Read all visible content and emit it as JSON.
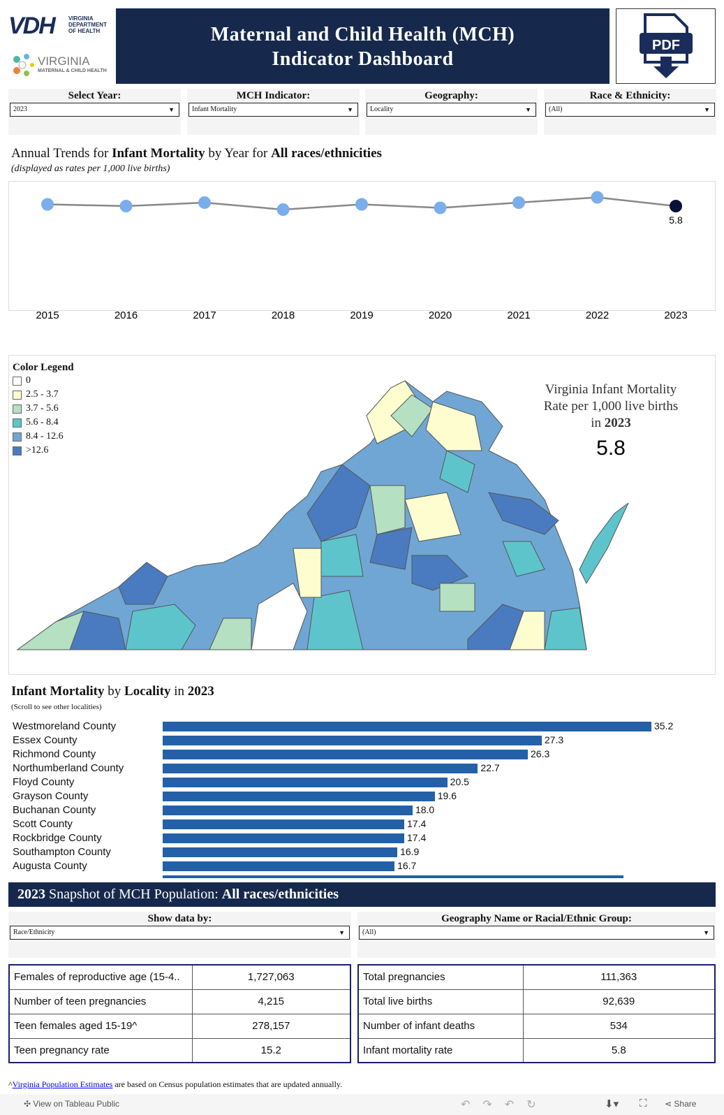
{
  "header": {
    "logo_vdh": "VDH",
    "logo_vdh_sub": "VIRGINIA DEPARTMENT OF HEALTH",
    "logo_mch": "VIRGINIA",
    "logo_mch_sub": "MATERNAL & CHILD HEALTH",
    "title_line1": "Maternal and Child Health (MCH)",
    "title_line2": "Indicator Dashboard",
    "pdf_label": "PDF"
  },
  "filters": [
    {
      "label": "Select Year:",
      "value": "2023"
    },
    {
      "label": "MCH Indicator:",
      "value": "Infant Mortality"
    },
    {
      "label": "Geography:",
      "value": "Locality"
    },
    {
      "label": "Race & Ethnicity:",
      "value": "(All)"
    }
  ],
  "trend": {
    "title_pre": "Annual Trends for ",
    "title_ind": "Infant Mortality",
    "title_mid": " by Year for ",
    "title_race": "All races/ethnicities",
    "subtitle": "(displayed as rates per 1,000 live births)"
  },
  "chart_data": [
    {
      "type": "line",
      "x": [
        "2015",
        "2016",
        "2017",
        "2018",
        "2019",
        "2020",
        "2021",
        "2022",
        "2023"
      ],
      "values": [
        5.9,
        5.8,
        6.0,
        5.6,
        5.9,
        5.7,
        6.0,
        6.3,
        5.8
      ],
      "labels": {
        "2023": "5.8"
      },
      "highlight": "2023",
      "colors": {
        "point": "#7aaeea",
        "highlight": "#0a0f3d",
        "line": "#888888"
      }
    },
    {
      "type": "bar",
      "title": "Infant Mortality by Locality in 2023",
      "categories": [
        "Westmoreland County",
        "Essex County",
        "Richmond County",
        "Northumberland County",
        "Floyd County",
        "Grayson County",
        "Buchanan County",
        "Scott County",
        "Rockbridge County",
        "Southampton County",
        "Augusta County"
      ],
      "values": [
        35.2,
        27.3,
        26.3,
        22.7,
        20.5,
        19.6,
        18.0,
        17.4,
        17.4,
        16.9,
        16.7
      ],
      "color": "#2360a8"
    }
  ],
  "map": {
    "legend_title": "Color Legend",
    "legend": [
      {
        "label": "0",
        "color": "#ffffff"
      },
      {
        "label": "2.5 - 3.7",
        "color": "#fdfdd0"
      },
      {
        "label": "3.7 - 5.6",
        "color": "#b5e0c2"
      },
      {
        "label": "5.6 - 8.4",
        "color": "#5ec4cc"
      },
      {
        "label": "8.4 - 12.6",
        "color": "#6fa6d4"
      },
      {
        "label": ">12.6",
        "color": "#4a7bc0"
      }
    ],
    "caption_line1": "Virginia Infant Mortality",
    "caption_line2": "Rate per 1,000 live births",
    "caption_in": "in ",
    "caption_year": "2023",
    "state_rate": "5.8"
  },
  "bars": {
    "title_ind": "Infant Mortality",
    "title_by": " by ",
    "title_geo": "Locality",
    "title_in": " in ",
    "title_year": "2023",
    "note": "(Scroll to see other localities)"
  },
  "snapshot": {
    "year": "2023",
    "title_mid": " Snapshot of MCH Population:  ",
    "race": "All races/ethnicities",
    "show_label": "Show data by:",
    "show_value": "Race/Ethnicity",
    "geo_label": "Geography Name or Racial/Ethnic Group:",
    "geo_value": "(All)",
    "left": [
      [
        "Females of reproductive age (15-4..",
        "1,727,063"
      ],
      [
        "Number of teen pregnancies",
        "4,215"
      ],
      [
        "Teen females aged 15-19^",
        "278,157"
      ],
      [
        "Teen pregnancy rate",
        "15.2"
      ]
    ],
    "right": [
      [
        "Total pregnancies",
        "111,363"
      ],
      [
        "Total live births",
        "92,639"
      ],
      [
        "Number of infant deaths",
        "534"
      ],
      [
        "Infant mortality rate",
        "5.8"
      ]
    ]
  },
  "footnote": {
    "link": "Virginia Population Estimates",
    "text": " are based on Census population estimates that are updated annually.",
    "caret": "^"
  },
  "footer": {
    "view": "View on Tableau Public",
    "share": "Share"
  }
}
